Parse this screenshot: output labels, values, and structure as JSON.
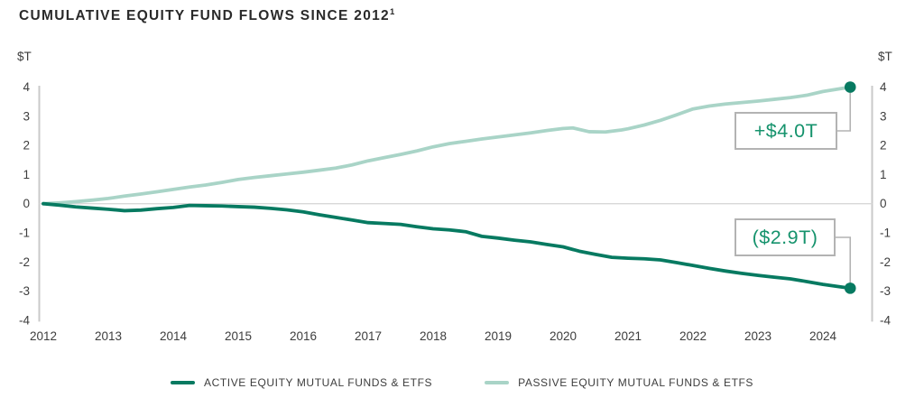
{
  "title": {
    "text": "CUMULATIVE EQUITY FUND FLOWS SINCE 2012",
    "superscript": "1"
  },
  "axes": {
    "unit_left": "$T",
    "unit_right": "$T"
  },
  "callouts": {
    "passive_end": "+$4.0T",
    "active_end": "($2.9T)"
  },
  "legend": {
    "items": [
      {
        "label": "ACTIVE EQUITY MUTUAL FUNDS & ETFS",
        "color_key": "active"
      },
      {
        "label": "PASSIVE EQUITY MUTUAL FUNDS & ETFS",
        "color_key": "passive"
      }
    ]
  },
  "colors": {
    "active": "#077a61",
    "passive": "#a9d4c7",
    "dot": "#077a61",
    "callout_text": "#16936d",
    "callout_border": "#b3b3b3",
    "connector": "#b3b3b3",
    "zero_line": "#d8d8d8",
    "axis_line": "#c9c9c9",
    "tick_text": "#3d3d3d",
    "title_text": "#2a2a2a"
  },
  "chart_data": {
    "type": "line",
    "title": "CUMULATIVE EQUITY FUND FLOWS SINCE 2012",
    "footnote_marker": "1",
    "ylabel": "$T",
    "xlabel": "",
    "xlim": [
      2012,
      2024.55
    ],
    "ylim": [
      -4,
      4
    ],
    "yticks": [
      4,
      3,
      2,
      1,
      0,
      -1,
      -2,
      -3,
      -4
    ],
    "xticks": [
      2012,
      2013,
      2014,
      2015,
      2016,
      2017,
      2018,
      2019,
      2020,
      2021,
      2022,
      2023,
      2024
    ],
    "grid": "zero-line-only",
    "legend_position": "bottom",
    "dual_y_axis": true,
    "series": [
      {
        "name": "ACTIVE EQUITY MUTUAL FUNDS & ETFS",
        "color_key": "active",
        "end_annotation": "($2.9T)",
        "end_value": -2.9,
        "points": [
          [
            2012.0,
            0.0
          ],
          [
            2012.25,
            -0.05
          ],
          [
            2012.5,
            -0.11
          ],
          [
            2012.75,
            -0.15
          ],
          [
            2013.0,
            -0.19
          ],
          [
            2013.25,
            -0.24
          ],
          [
            2013.5,
            -0.22
          ],
          [
            2013.75,
            -0.17
          ],
          [
            2014.0,
            -0.13
          ],
          [
            2014.25,
            -0.06
          ],
          [
            2014.5,
            -0.07
          ],
          [
            2014.75,
            -0.08
          ],
          [
            2015.0,
            -0.1
          ],
          [
            2015.25,
            -0.12
          ],
          [
            2015.5,
            -0.16
          ],
          [
            2015.75,
            -0.21
          ],
          [
            2016.0,
            -0.28
          ],
          [
            2016.25,
            -0.38
          ],
          [
            2016.5,
            -0.47
          ],
          [
            2016.75,
            -0.56
          ],
          [
            2017.0,
            -0.65
          ],
          [
            2017.25,
            -0.68
          ],
          [
            2017.5,
            -0.71
          ],
          [
            2017.75,
            -0.79
          ],
          [
            2018.0,
            -0.86
          ],
          [
            2018.25,
            -0.9
          ],
          [
            2018.5,
            -0.96
          ],
          [
            2018.75,
            -1.12
          ],
          [
            2019.0,
            -1.18
          ],
          [
            2019.25,
            -1.25
          ],
          [
            2019.5,
            -1.31
          ],
          [
            2019.75,
            -1.4
          ],
          [
            2020.0,
            -1.48
          ],
          [
            2020.25,
            -1.63
          ],
          [
            2020.5,
            -1.74
          ],
          [
            2020.75,
            -1.84
          ],
          [
            2021.0,
            -1.87
          ],
          [
            2021.25,
            -1.89
          ],
          [
            2021.5,
            -1.93
          ],
          [
            2021.75,
            -2.02
          ],
          [
            2022.0,
            -2.12
          ],
          [
            2022.25,
            -2.22
          ],
          [
            2022.5,
            -2.31
          ],
          [
            2022.75,
            -2.39
          ],
          [
            2023.0,
            -2.46
          ],
          [
            2023.25,
            -2.52
          ],
          [
            2023.5,
            -2.58
          ],
          [
            2023.75,
            -2.67
          ],
          [
            2024.0,
            -2.77
          ],
          [
            2024.42,
            -2.9
          ]
        ]
      },
      {
        "name": "PASSIVE EQUITY MUTUAL FUNDS & ETFS",
        "color_key": "passive",
        "end_annotation": "+$4.0T",
        "end_value": 4.0,
        "points": [
          [
            2012.0,
            0.0
          ],
          [
            2012.25,
            0.03
          ],
          [
            2012.5,
            0.07
          ],
          [
            2012.75,
            0.12
          ],
          [
            2013.0,
            0.18
          ],
          [
            2013.25,
            0.26
          ],
          [
            2013.5,
            0.33
          ],
          [
            2013.75,
            0.41
          ],
          [
            2014.0,
            0.49
          ],
          [
            2014.25,
            0.57
          ],
          [
            2014.5,
            0.64
          ],
          [
            2014.75,
            0.73
          ],
          [
            2015.0,
            0.83
          ],
          [
            2015.25,
            0.9
          ],
          [
            2015.5,
            0.96
          ],
          [
            2015.75,
            1.02
          ],
          [
            2016.0,
            1.08
          ],
          [
            2016.25,
            1.15
          ],
          [
            2016.5,
            1.22
          ],
          [
            2016.75,
            1.33
          ],
          [
            2017.0,
            1.47
          ],
          [
            2017.25,
            1.58
          ],
          [
            2017.5,
            1.69
          ],
          [
            2017.75,
            1.81
          ],
          [
            2018.0,
            1.95
          ],
          [
            2018.25,
            2.06
          ],
          [
            2018.5,
            2.14
          ],
          [
            2018.75,
            2.22
          ],
          [
            2019.0,
            2.29
          ],
          [
            2019.25,
            2.36
          ],
          [
            2019.5,
            2.43
          ],
          [
            2019.75,
            2.51
          ],
          [
            2020.0,
            2.58
          ],
          [
            2020.15,
            2.6
          ],
          [
            2020.4,
            2.47
          ],
          [
            2020.65,
            2.46
          ],
          [
            2020.9,
            2.53
          ],
          [
            2021.0,
            2.57
          ],
          [
            2021.25,
            2.7
          ],
          [
            2021.5,
            2.86
          ],
          [
            2021.75,
            3.05
          ],
          [
            2022.0,
            3.25
          ],
          [
            2022.25,
            3.35
          ],
          [
            2022.5,
            3.42
          ],
          [
            2022.75,
            3.47
          ],
          [
            2023.0,
            3.52
          ],
          [
            2023.25,
            3.58
          ],
          [
            2023.5,
            3.64
          ],
          [
            2023.75,
            3.72
          ],
          [
            2024.0,
            3.85
          ],
          [
            2024.42,
            4.0
          ]
        ]
      }
    ]
  }
}
